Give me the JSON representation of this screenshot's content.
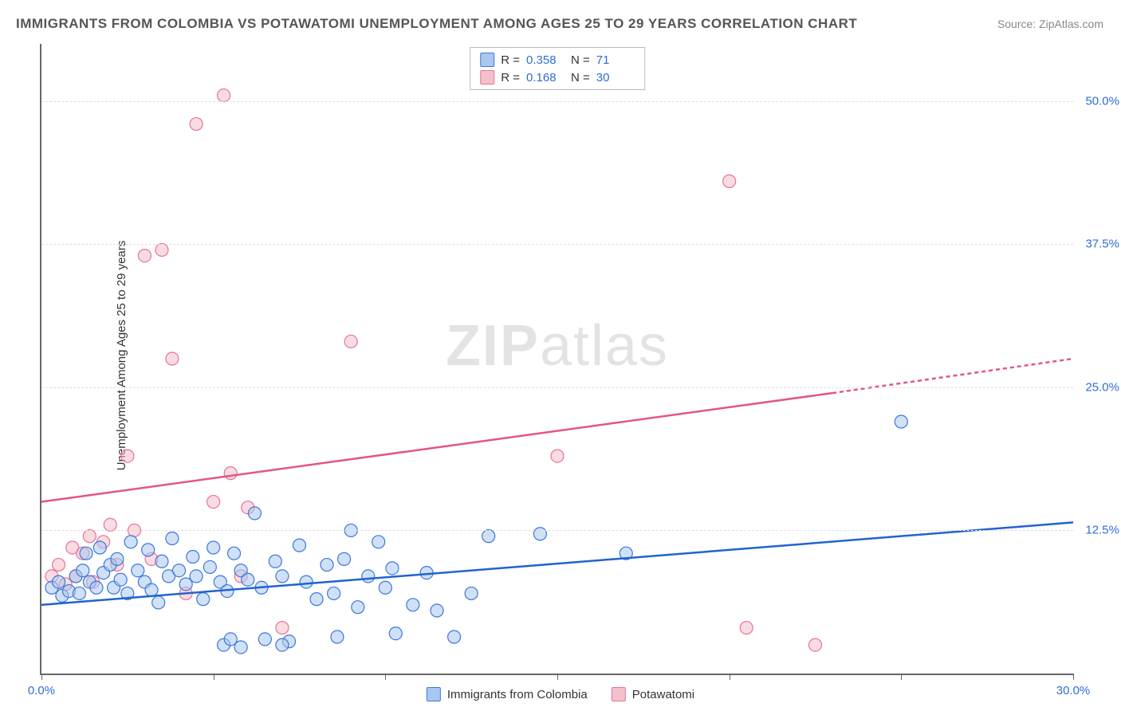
{
  "title": "IMMIGRANTS FROM COLOMBIA VS POTAWATOMI UNEMPLOYMENT AMONG AGES 25 TO 29 YEARS CORRELATION CHART",
  "source": "Source: ZipAtlas.com",
  "watermark_bold": "ZIP",
  "watermark_light": "atlas",
  "chart": {
    "type": "scatter",
    "background_color": "#ffffff",
    "grid_color": "#dddddd",
    "axis_color": "#666666",
    "ylabel": "Unemployment Among Ages 25 to 29 years",
    "xlim": [
      0,
      30
    ],
    "ylim": [
      0,
      55
    ],
    "yticks": [
      12.5,
      25.0,
      37.5,
      50.0
    ],
    "ytick_labels": [
      "12.5%",
      "25.0%",
      "37.5%",
      "50.0%"
    ],
    "xticks": [
      0,
      5,
      10,
      15,
      20,
      25,
      30
    ],
    "xtick_labels_shown": {
      "0": "0.0%",
      "30": "30.0%"
    },
    "marker_radius": 8,
    "marker_opacity": 0.55,
    "series": {
      "colombia": {
        "label": "Immigrants from Colombia",
        "fill": "#a9c7ef",
        "stroke": "#3b78d8",
        "trend_stroke": "#2163cf",
        "trend": {
          "x1": 0,
          "y1": 6.0,
          "x2": 30,
          "y2": 13.2
        },
        "R": "0.358",
        "N": "71",
        "points": [
          [
            0.3,
            7.5
          ],
          [
            0.5,
            8.0
          ],
          [
            0.6,
            6.8
          ],
          [
            0.8,
            7.2
          ],
          [
            1.0,
            8.5
          ],
          [
            1.1,
            7.0
          ],
          [
            1.2,
            9.0
          ],
          [
            1.3,
            10.5
          ],
          [
            1.4,
            8.0
          ],
          [
            1.6,
            7.5
          ],
          [
            1.7,
            11.0
          ],
          [
            1.8,
            8.8
          ],
          [
            2.0,
            9.5
          ],
          [
            2.1,
            7.5
          ],
          [
            2.2,
            10.0
          ],
          [
            2.3,
            8.2
          ],
          [
            2.5,
            7.0
          ],
          [
            2.6,
            11.5
          ],
          [
            2.8,
            9.0
          ],
          [
            3.0,
            8.0
          ],
          [
            3.1,
            10.8
          ],
          [
            3.2,
            7.3
          ],
          [
            3.4,
            6.2
          ],
          [
            3.5,
            9.8
          ],
          [
            3.7,
            8.5
          ],
          [
            3.8,
            11.8
          ],
          [
            4.0,
            9.0
          ],
          [
            4.2,
            7.8
          ],
          [
            4.4,
            10.2
          ],
          [
            4.5,
            8.5
          ],
          [
            4.7,
            6.5
          ],
          [
            4.9,
            9.3
          ],
          [
            5.0,
            11.0
          ],
          [
            5.2,
            8.0
          ],
          [
            5.4,
            7.2
          ],
          [
            5.6,
            10.5
          ],
          [
            5.8,
            9.0
          ],
          [
            5.3,
            2.5
          ],
          [
            5.5,
            3.0
          ],
          [
            6.0,
            8.2
          ],
          [
            6.2,
            14.0
          ],
          [
            6.4,
            7.5
          ],
          [
            6.5,
            3.0
          ],
          [
            6.8,
            9.8
          ],
          [
            7.0,
            8.5
          ],
          [
            7.2,
            2.8
          ],
          [
            7.5,
            11.2
          ],
          [
            7.7,
            8.0
          ],
          [
            8.0,
            6.5
          ],
          [
            8.3,
            9.5
          ],
          [
            8.5,
            7.0
          ],
          [
            8.6,
            3.2
          ],
          [
            8.8,
            10.0
          ],
          [
            9.0,
            12.5
          ],
          [
            9.2,
            5.8
          ],
          [
            9.5,
            8.5
          ],
          [
            9.8,
            11.5
          ],
          [
            10.0,
            7.5
          ],
          [
            10.2,
            9.2
          ],
          [
            10.3,
            3.5
          ],
          [
            10.8,
            6.0
          ],
          [
            11.2,
            8.8
          ],
          [
            11.5,
            5.5
          ],
          [
            12.0,
            3.2
          ],
          [
            12.5,
            7.0
          ],
          [
            13.0,
            12.0
          ],
          [
            14.5,
            12.2
          ],
          [
            17.0,
            10.5
          ],
          [
            25.0,
            22.0
          ],
          [
            5.8,
            2.3
          ],
          [
            7.0,
            2.5
          ]
        ]
      },
      "potawatomi": {
        "label": "Potawatomi",
        "fill": "#f4c0cb",
        "stroke": "#e77395",
        "trend_stroke": "#e35584",
        "trend": {
          "x1": 0,
          "y1": 15.0,
          "x2": 23,
          "y2": 24.5
        },
        "trend_dash_from_x": 23,
        "trend_dash_to": {
          "x": 30,
          "y": 27.5
        },
        "R": "0.168",
        "N": "30",
        "points": [
          [
            0.3,
            8.5
          ],
          [
            0.5,
            9.5
          ],
          [
            0.7,
            7.8
          ],
          [
            0.9,
            11.0
          ],
          [
            1.0,
            8.5
          ],
          [
            1.2,
            10.5
          ],
          [
            1.4,
            12.0
          ],
          [
            1.5,
            8.0
          ],
          [
            1.8,
            11.5
          ],
          [
            2.0,
            13.0
          ],
          [
            2.2,
            9.5
          ],
          [
            2.5,
            19.0
          ],
          [
            2.7,
            12.5
          ],
          [
            3.0,
            36.5
          ],
          [
            3.2,
            10.0
          ],
          [
            3.5,
            37.0
          ],
          [
            3.8,
            27.5
          ],
          [
            4.2,
            7.0
          ],
          [
            4.5,
            48.0
          ],
          [
            5.0,
            15.0
          ],
          [
            5.3,
            50.5
          ],
          [
            5.5,
            17.5
          ],
          [
            5.8,
            8.5
          ],
          [
            6.0,
            14.5
          ],
          [
            7.0,
            4.0
          ],
          [
            9.0,
            29.0
          ],
          [
            15.0,
            19.0
          ],
          [
            20.0,
            43.0
          ],
          [
            20.5,
            4.0
          ],
          [
            22.5,
            2.5
          ]
        ]
      }
    },
    "legend_top": {
      "R_label": "R =",
      "N_label": "N ="
    }
  }
}
